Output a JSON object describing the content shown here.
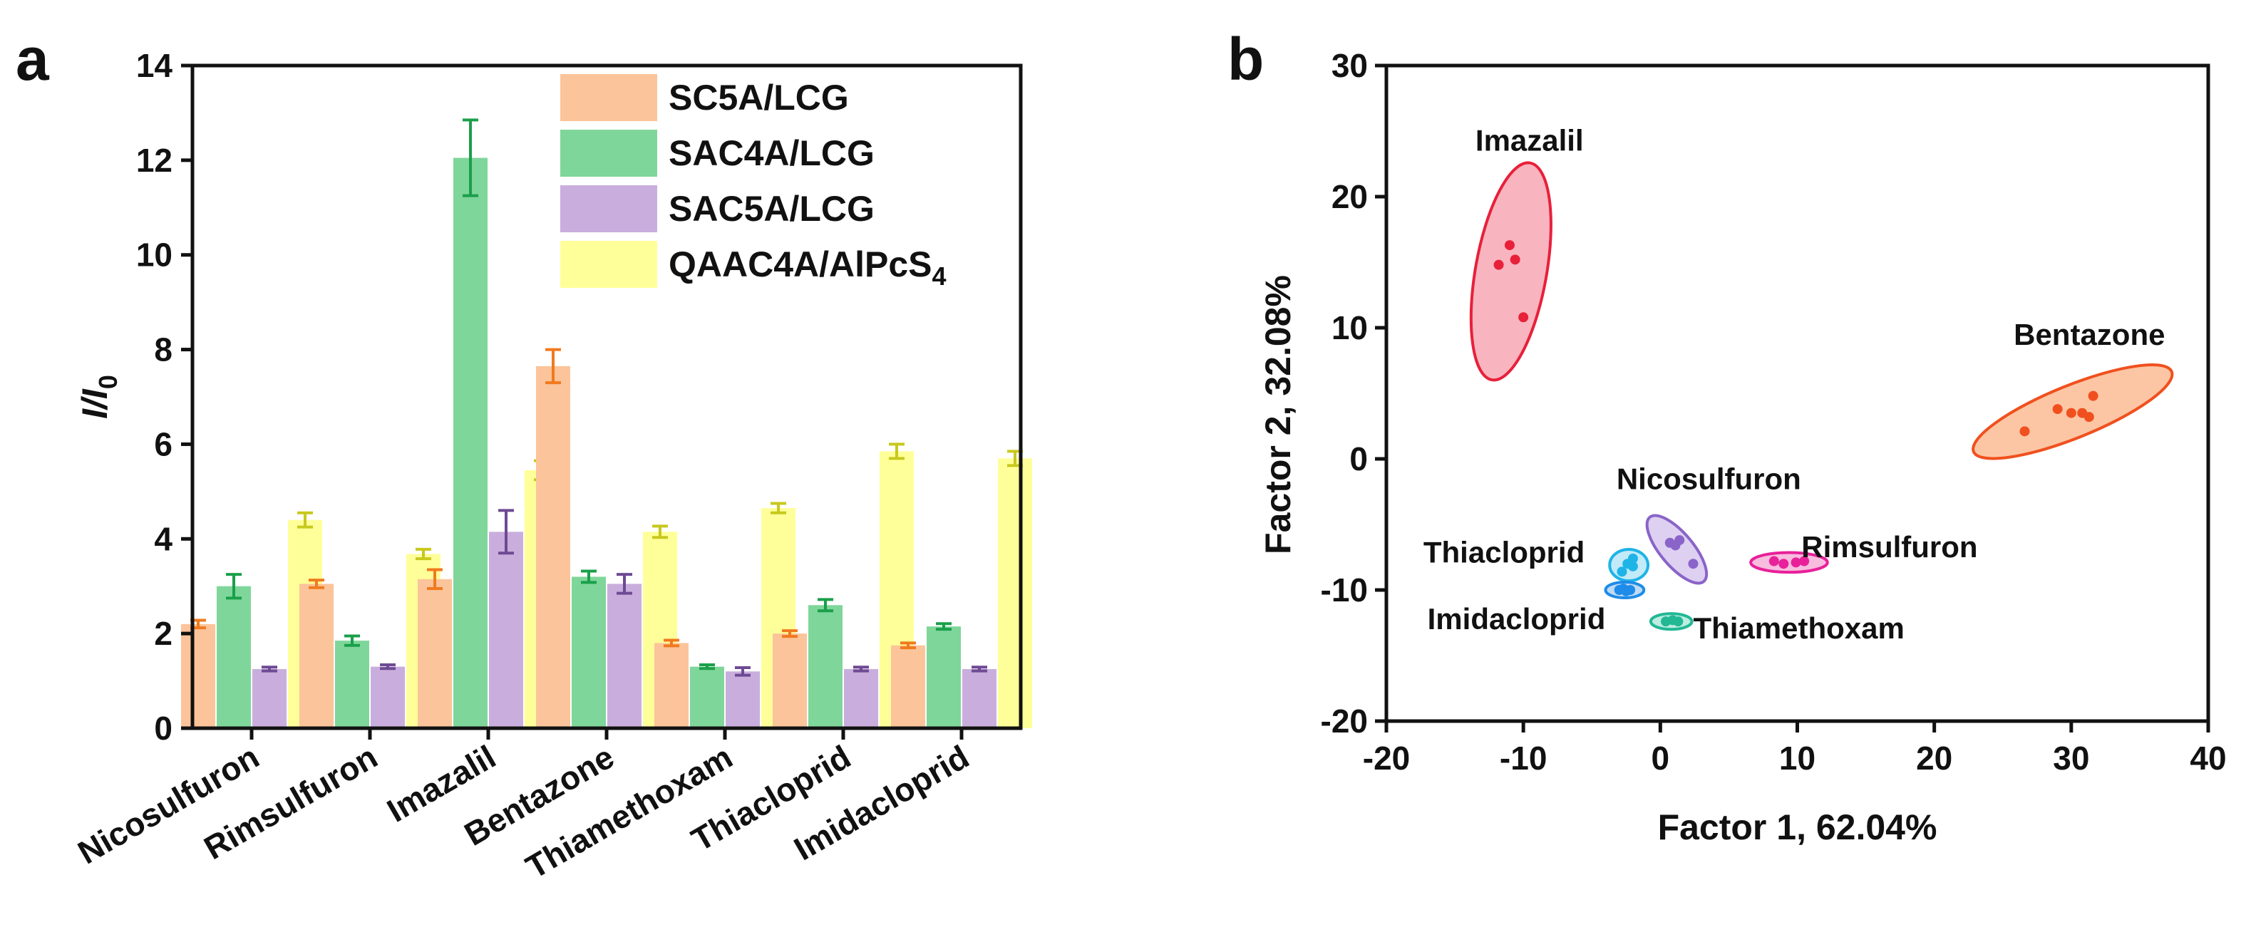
{
  "chart_data": [
    {
      "panel": "a",
      "type": "bar",
      "ylabel_main": "I/I",
      "ylabel_sub": "0",
      "xlabel": "",
      "ylim": [
        0,
        14
      ],
      "yticks": [
        0,
        2,
        4,
        6,
        8,
        10,
        12,
        14
      ],
      "categories": [
        "Nicosulfuron",
        "Rimsulfuron",
        "Imazalil",
        "Bentazone",
        "Thiamethoxam",
        "Thiacloprid",
        "Imidacloprid"
      ],
      "legend_position": "top-right",
      "series": [
        {
          "name": "SC5A/LCG",
          "name_sub": "",
          "fill": "#fcc49a",
          "err_color": "#f07a1e",
          "values": [
            2.2,
            3.05,
            3.15,
            7.65,
            1.8,
            2.0,
            1.75
          ],
          "errors": [
            0.08,
            0.08,
            0.2,
            0.35,
            0.06,
            0.06,
            0.05
          ]
        },
        {
          "name": "SAC4A/LCG",
          "name_sub": "",
          "fill": "#7fd69a",
          "err_color": "#1a9f4a",
          "values": [
            3.0,
            1.85,
            12.05,
            3.2,
            1.3,
            2.6,
            2.15
          ],
          "errors": [
            0.25,
            0.1,
            0.8,
            0.12,
            0.04,
            0.12,
            0.06
          ]
        },
        {
          "name": "SAC5A/LCG",
          "name_sub": "",
          "fill": "#c9aedd",
          "err_color": "#6e4a93",
          "values": [
            1.25,
            1.3,
            4.15,
            3.05,
            1.2,
            1.25,
            1.25
          ],
          "errors": [
            0.04,
            0.04,
            0.45,
            0.2,
            0.08,
            0.04,
            0.04
          ]
        },
        {
          "name": "QAAC4A/AlPcS",
          "name_sub": "4",
          "fill": "#ffff99",
          "err_color": "#c8c81e",
          "values": [
            4.4,
            3.68,
            5.45,
            4.15,
            4.65,
            5.85,
            5.7
          ],
          "errors": [
            0.15,
            0.1,
            0.2,
            0.12,
            0.1,
            0.15,
            0.15
          ]
        }
      ]
    },
    {
      "panel": "b",
      "type": "scatter",
      "xlabel": "Factor 1, 62.04%",
      "ylabel": "Factor 2, 32.08%",
      "xlim": [
        -20,
        40
      ],
      "ylim": [
        -20,
        30
      ],
      "xticks": [
        -20,
        -10,
        0,
        10,
        20,
        30,
        40
      ],
      "yticks": [
        -20,
        -10,
        0,
        10,
        20,
        30
      ],
      "groups": [
        {
          "name": "Imazalil",
          "color": "#e8203a",
          "fill": "#f7a8b4",
          "points": [
            [
              -11.8,
              14.8
            ],
            [
              -11.0,
              16.3
            ],
            [
              -10.6,
              15.2
            ],
            [
              -10.0,
              10.8
            ]
          ],
          "ellipse": {
            "cx": -10.9,
            "cy": 14.3,
            "rx": 2.6,
            "ry": 8.4,
            "rot": 10
          },
          "label_at": [
            -13.5,
            23.5
          ],
          "anchor": "start"
        },
        {
          "name": "Bentazone",
          "color": "#f0501e",
          "fill": "#fbbc94",
          "points": [
            [
              26.6,
              2.1
            ],
            [
              29.0,
              3.8
            ],
            [
              30.0,
              3.5
            ],
            [
              30.8,
              3.5
            ],
            [
              31.3,
              3.2
            ],
            [
              31.6,
              4.8
            ]
          ],
          "ellipse": {
            "cx": 30.1,
            "cy": 3.6,
            "rx": 7.8,
            "ry": 2.0,
            "rot": -22
          },
          "label_at": [
            25.8,
            8.7
          ],
          "anchor": "start"
        },
        {
          "name": "Nicosulfuron",
          "color": "#8a64c8",
          "fill": "#d8c8ef",
          "points": [
            [
              0.7,
              -6.4
            ],
            [
              1.1,
              -6.6
            ],
            [
              1.4,
              -6.2
            ],
            [
              2.4,
              -8.0
            ]
          ],
          "ellipse": {
            "cx": 1.2,
            "cy": -6.9,
            "rx": 1.2,
            "ry": 3.2,
            "rot": -40
          },
          "label_at": [
            -3.2,
            -2.3
          ],
          "anchor": "start"
        },
        {
          "name": "Rimsulfuron",
          "color": "#e8209a",
          "fill": "#f7b0d8",
          "points": [
            [
              8.3,
              -7.8
            ],
            [
              9.0,
              -8.0
            ],
            [
              9.9,
              -7.9
            ],
            [
              10.5,
              -7.8
            ]
          ],
          "ellipse": {
            "cx": 9.4,
            "cy": -7.9,
            "rx": 2.8,
            "ry": 0.75,
            "rot": 0
          },
          "label_at": [
            10.3,
            -7.5
          ],
          "anchor": "start"
        },
        {
          "name": "Thiacloprid",
          "color": "#1eb4e8",
          "fill": "#b8e6f7",
          "points": [
            [
              -2.4,
              -8.0
            ],
            [
              -2.0,
              -7.6
            ],
            [
              -2.8,
              -8.6
            ],
            [
              -2.0,
              -8.2
            ]
          ],
          "ellipse": {
            "cx": -2.3,
            "cy": -8.1,
            "rx": 1.4,
            "ry": 1.2,
            "rot": 0
          },
          "label_at": [
            -17.3,
            -7.9
          ],
          "anchor": "start"
        },
        {
          "name": "Imidacloprid",
          "color": "#1e8ce8",
          "fill": "#b4d4f4",
          "points": [
            [
              -3.0,
              -10.0
            ],
            [
              -2.5,
              -10.1
            ],
            [
              -2.2,
              -10.0
            ],
            [
              -2.7,
              -9.9
            ]
          ],
          "ellipse": {
            "cx": -2.6,
            "cy": -10.0,
            "rx": 1.4,
            "ry": 0.6,
            "rot": 0
          },
          "label_at": [
            -17.0,
            -13.0
          ],
          "anchor": "start"
        },
        {
          "name": "Thiamethoxam",
          "color": "#22b894",
          "fill": "#b0eadc",
          "points": [
            [
              0.4,
              -12.4
            ],
            [
              0.9,
              -12.3
            ],
            [
              1.3,
              -12.4
            ]
          ],
          "ellipse": {
            "cx": 0.8,
            "cy": -12.4,
            "rx": 1.5,
            "ry": 0.6,
            "rot": 0
          },
          "label_at": [
            2.4,
            -13.7
          ],
          "anchor": "start"
        }
      ]
    }
  ]
}
